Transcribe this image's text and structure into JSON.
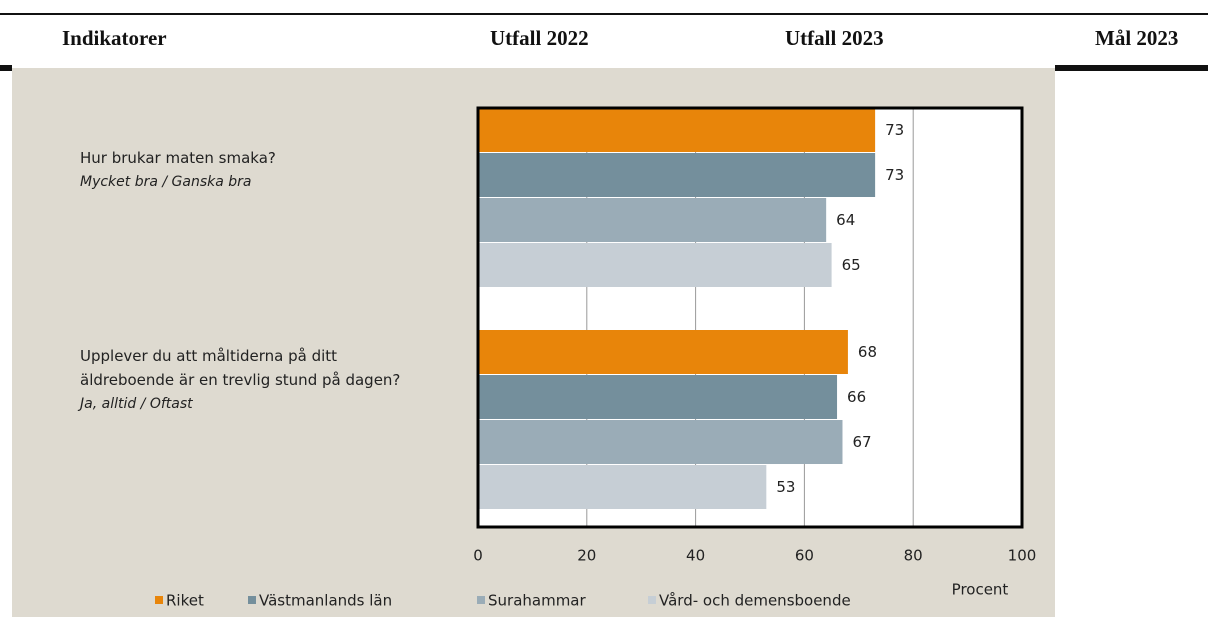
{
  "table": {
    "columns": [
      "Indikatorer",
      "Utfall 2022",
      "Utfall 2023",
      "Mål 2023"
    ]
  },
  "chart_data": {
    "type": "barh",
    "categories": [
      "Hur brukar maten smaka?",
      "Upplever du att måltiderna på ditt äldreboende är en trevlig stund på dagen?"
    ],
    "category_notes": [
      "Mycket bra / Ganska bra",
      "Ja, alltid / Oftast"
    ],
    "series": [
      {
        "name": "Riket",
        "color": "#e8850a",
        "values": [
          73,
          68
        ]
      },
      {
        "name": "Västmanlands län",
        "color": "#748f9c",
        "values": [
          73,
          66
        ]
      },
      {
        "name": "Surahammar",
        "color": "#9aacb7",
        "values": [
          64,
          67
        ]
      },
      {
        "name": "Vård- och demensboende",
        "color": "#c6ced5",
        "values": [
          65,
          53
        ]
      }
    ],
    "xlim": [
      0,
      100
    ],
    "xticks": [
      0,
      20,
      40,
      60,
      80,
      100
    ],
    "xlabel": "Procent",
    "grid": true
  }
}
